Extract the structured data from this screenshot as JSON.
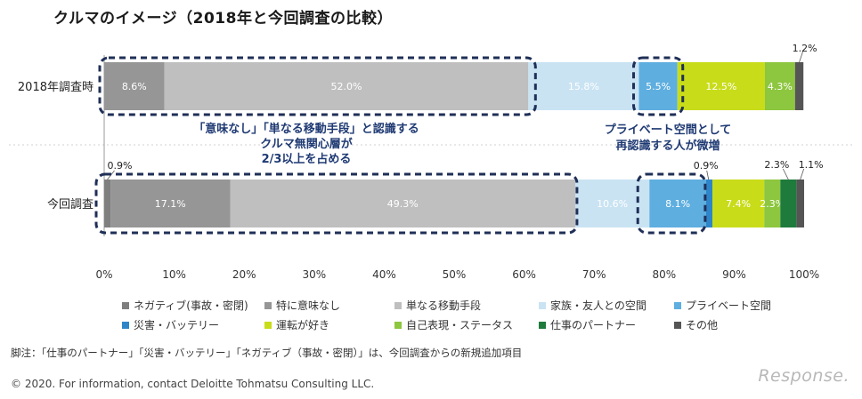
{
  "page_title": "クルマのイメージ（2018年と今回調査の比較）",
  "chart_data": {
    "type": "bar",
    "orientation": "horizontal-stacked-100",
    "categories": [
      "2018年調査時",
      "今回調査"
    ],
    "series": [
      {
        "name": "ネガティブ(事故・密閉)",
        "color": "#7f7f7f",
        "values": [
          0,
          0.9
        ]
      },
      {
        "name": "特に意味なし",
        "color": "#969696",
        "values": [
          8.6,
          17.1
        ]
      },
      {
        "name": "単なる移動手段",
        "color": "#bfbfbf",
        "values": [
          52.0,
          49.3
        ]
      },
      {
        "name": "家族・友人との空間",
        "color": "#c9e3f3",
        "values": [
          15.8,
          10.6
        ]
      },
      {
        "name": "プライベート空間",
        "color": "#5eaedf",
        "values": [
          5.5,
          8.1
        ]
      },
      {
        "name": "災害・バッテリー",
        "color": "#2e86c8",
        "values": [
          0,
          0.9
        ]
      },
      {
        "name": "運転が好き",
        "color": "#c8dc19",
        "values": [
          12.5,
          7.4
        ]
      },
      {
        "name": "自己表現・ステータス",
        "color": "#8dc63f",
        "values": [
          4.3,
          2.3
        ]
      },
      {
        "name": "仕事のパートナー",
        "color": "#1e7b3c",
        "values": [
          0,
          2.3
        ]
      },
      {
        "name": "その他",
        "color": "#555555",
        "values": [
          1.2,
          1.1
        ]
      }
    ],
    "labels": [
      [
        "",
        "8.6%",
        "52.0%",
        "15.8%",
        "5.5%",
        "",
        "12.5%",
        "4.3%",
        "",
        ""
      ],
      [
        "",
        "17.1%",
        "49.3%",
        "10.6%",
        "8.1%",
        "",
        "7.4%",
        "2.3%",
        "",
        ""
      ]
    ],
    "xlim": [
      0,
      100
    ],
    "xticks": [
      "0%",
      "10%",
      "20%",
      "30%",
      "40%",
      "50%",
      "60%",
      "70%",
      "80%",
      "90%",
      "100%"
    ],
    "callouts": [
      "1.2%",
      "0.9%",
      "0.9%",
      "2.3%",
      "1.1%"
    ],
    "annotation_left": [
      "「意味なし」「単なる移動手段」と認識する",
      "クルマ無関心層が",
      "2/3以上を占める"
    ],
    "annotation_right": [
      "プライベート空間として",
      "再認識する人が微増"
    ]
  },
  "footnote": "脚注：「仕事のパートナー」「災害・バッテリー」「ネガティブ（事故・密閉）」は、今回調査からの新規追加項目",
  "copyright": "© 2020. For information, contact Deloitte Tohmatsu Consulting LLC.",
  "watermark": "Response."
}
